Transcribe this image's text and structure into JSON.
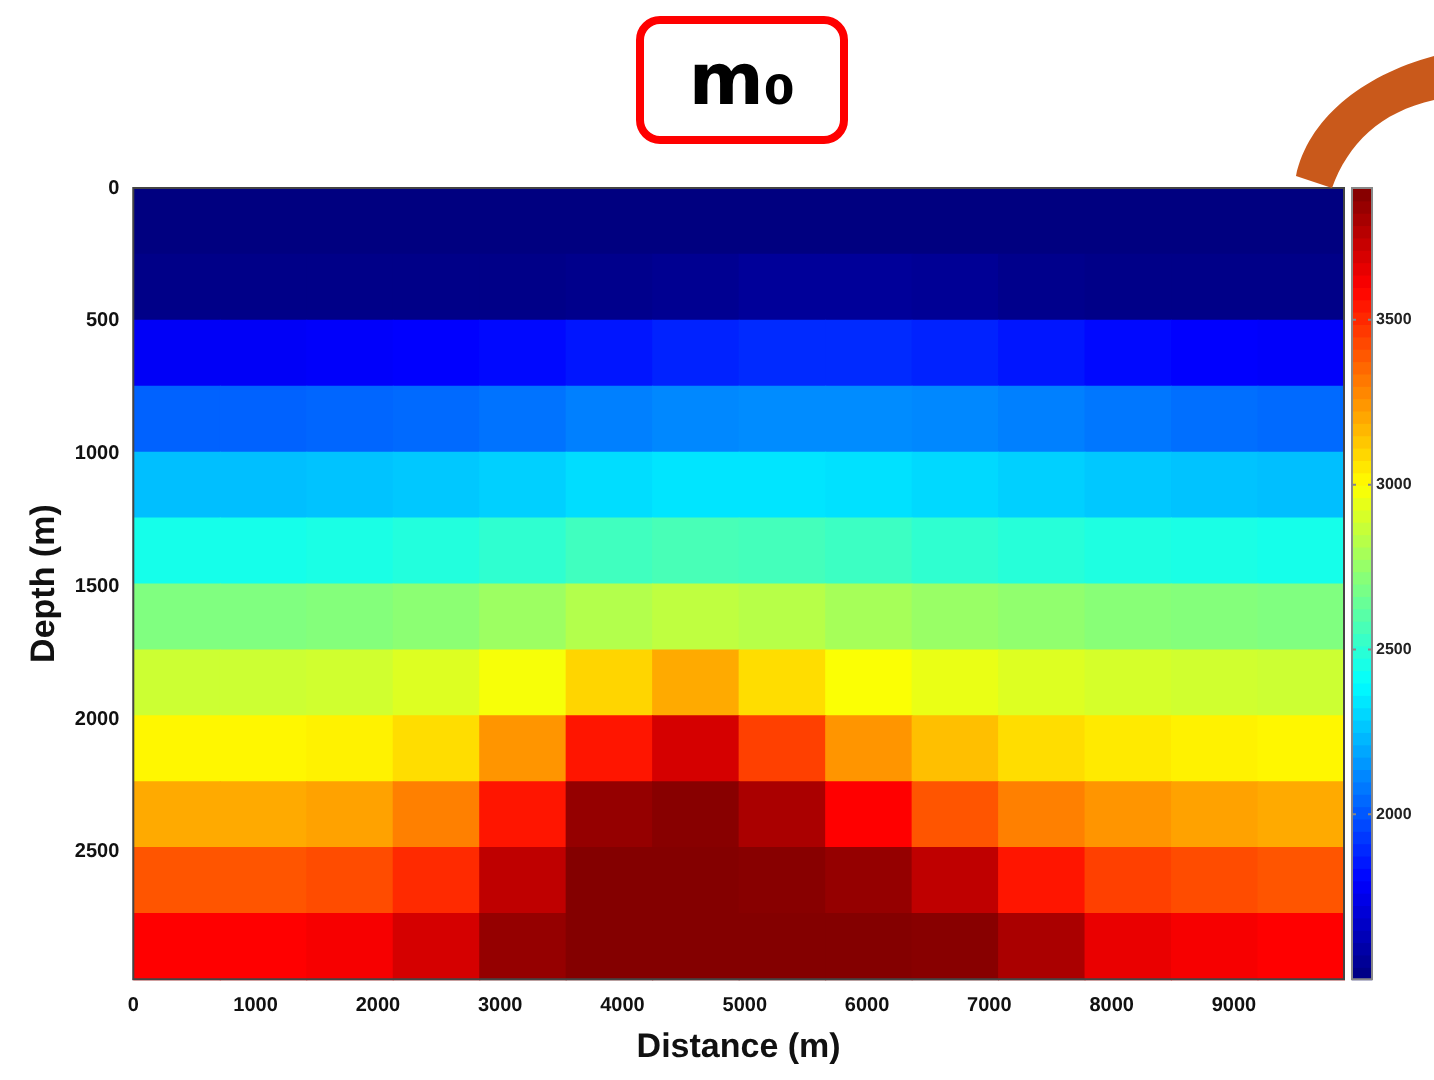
{
  "chart_data": {
    "type": "heatmap",
    "title": "m₀",
    "xlabel": "Distance (m)",
    "ylabel": "Depth (m)",
    "x": [
      354,
      1061,
      1768,
      2475,
      3182,
      3889,
      4596,
      5304,
      6011,
      6718,
      7425,
      8132,
      8839,
      9546
    ],
    "y": [
      124,
      372,
      620,
      869,
      1117,
      1365,
      1614,
      1862,
      2110,
      2358,
      2607,
      2855
    ],
    "cells": [
      [
        1500,
        1500,
        1500,
        1500,
        1500,
        1500,
        1500,
        1500,
        1500,
        1500,
        1500,
        1500,
        1500,
        1500
      ],
      [
        1520,
        1520,
        1520,
        1520,
        1520,
        1530,
        1540,
        1560,
        1560,
        1550,
        1530,
        1520,
        1520,
        1520
      ],
      [
        1780,
        1780,
        1790,
        1800,
        1820,
        1850,
        1880,
        1900,
        1900,
        1880,
        1850,
        1820,
        1800,
        1790
      ],
      [
        2030,
        2030,
        2040,
        2050,
        2070,
        2100,
        2120,
        2130,
        2130,
        2120,
        2100,
        2080,
        2060,
        2050
      ],
      [
        2250,
        2250,
        2260,
        2270,
        2290,
        2320,
        2340,
        2340,
        2330,
        2310,
        2290,
        2270,
        2260,
        2250
      ],
      [
        2450,
        2450,
        2460,
        2480,
        2510,
        2550,
        2570,
        2560,
        2540,
        2510,
        2490,
        2470,
        2460,
        2450
      ],
      [
        2700,
        2700,
        2710,
        2730,
        2770,
        2820,
        2850,
        2830,
        2790,
        2760,
        2740,
        2720,
        2710,
        2700
      ],
      [
        2880,
        2880,
        2890,
        2920,
        2980,
        3100,
        3200,
        3080,
        2990,
        2950,
        2920,
        2900,
        2890,
        2880
      ],
      [
        3020,
        3020,
        3030,
        3080,
        3250,
        3550,
        3700,
        3450,
        3250,
        3150,
        3080,
        3050,
        3030,
        3020
      ],
      [
        3200,
        3200,
        3220,
        3300,
        3550,
        3850,
        3880,
        3800,
        3600,
        3400,
        3300,
        3250,
        3220,
        3200
      ],
      [
        3400,
        3400,
        3420,
        3500,
        3750,
        3890,
        3890,
        3880,
        3850,
        3750,
        3550,
        3450,
        3420,
        3400
      ],
      [
        3600,
        3600,
        3620,
        3700,
        3850,
        3890,
        3890,
        3890,
        3890,
        3880,
        3800,
        3650,
        3620,
        3600
      ]
    ],
    "xlim": [
      0,
      9900
    ],
    "xticks": [
      0,
      1000,
      2000,
      3000,
      4000,
      5000,
      6000,
      7000,
      8000,
      9000
    ],
    "ylim": [
      2980,
      0
    ],
    "yticks": [
      0,
      500,
      1000,
      1500,
      2000,
      2500
    ],
    "clim": [
      1500,
      3900
    ],
    "cticks": [
      2000,
      2500,
      3000,
      3500
    ]
  }
}
